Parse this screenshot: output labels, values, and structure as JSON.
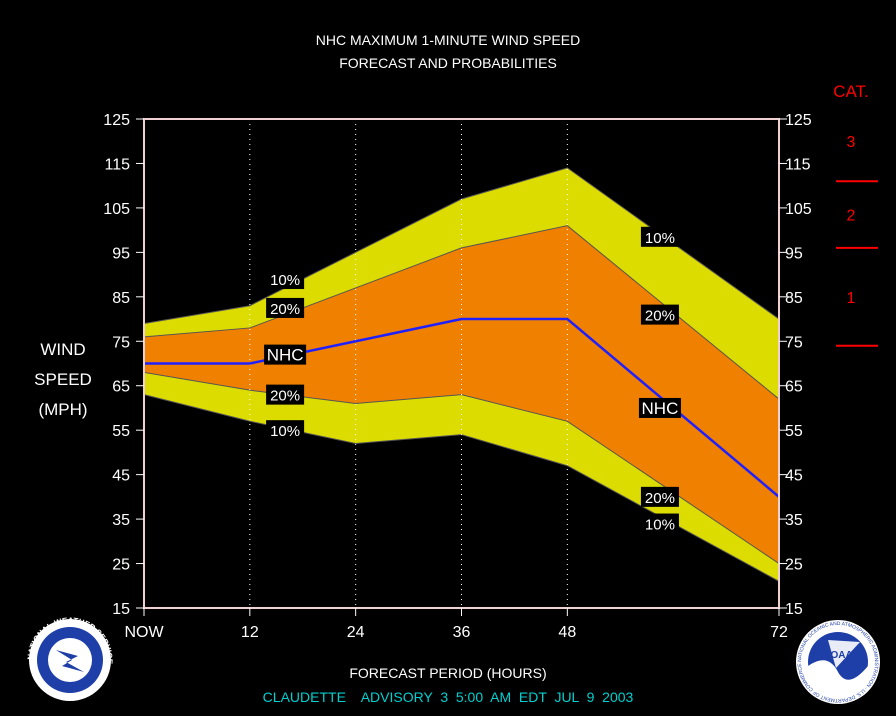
{
  "chart_data": {
    "type": "area",
    "title": "NHC MAXIMUM 1-MINUTE WIND SPEED",
    "subtitle": "FORECAST AND PROBABILITIES",
    "ylabel": [
      "WIND",
      "SPEED",
      "(MPH)"
    ],
    "xlabel": "FORECAST PERIOD (HOURS)",
    "footer": "CLAUDETTE    ADVISORY  3  5:00  AM  EDT  JUL  9  2003",
    "xlim": [
      0,
      72
    ],
    "ylim": [
      15,
      125
    ],
    "x_ticks": [
      0,
      12,
      24,
      36,
      48,
      72
    ],
    "x_tick_labels": [
      "NOW",
      "12",
      "24",
      "36",
      "48",
      "72"
    ],
    "y_ticks": [
      15,
      25,
      35,
      45,
      55,
      65,
      75,
      85,
      95,
      105,
      115,
      125
    ],
    "y_tick_labels": [
      "15",
      "25",
      "35",
      "45",
      "55",
      "65",
      "75",
      "85",
      "95",
      "105",
      "115",
      "125"
    ],
    "vertical_gridlines": [
      12,
      24,
      36,
      48
    ],
    "colors": {
      "outer_band": "#dcdc00",
      "inner_band": "#f08000",
      "nhc_line": "#2020ff",
      "category": "#ff0000",
      "footer": "#00d0d0"
    },
    "bands": {
      "upper_10": {
        "x": [
          0,
          12,
          24,
          36,
          48,
          72
        ],
        "y": [
          79,
          83,
          95,
          107,
          114,
          80
        ]
      },
      "upper_20": {
        "x": [
          0,
          12,
          24,
          36,
          48,
          72
        ],
        "y": [
          76,
          78,
          87,
          96,
          101,
          62
        ]
      },
      "lower_20": {
        "x": [
          0,
          12,
          24,
          36,
          48,
          72
        ],
        "y": [
          68,
          64,
          61,
          63,
          57,
          25
        ]
      },
      "lower_10": {
        "x": [
          0,
          12,
          24,
          36,
          48,
          72
        ],
        "y": [
          63,
          57,
          52,
          54,
          47,
          21
        ]
      }
    },
    "series": [
      {
        "name": "NHC",
        "x": [
          0,
          12,
          24,
          36,
          48,
          72
        ],
        "y": [
          70,
          70,
          75,
          80,
          80,
          40
        ]
      }
    ],
    "annotations": [
      {
        "text": "10%",
        "x": 16,
        "y": 89
      },
      {
        "text": "20%",
        "x": 16,
        "y": 82.5
      },
      {
        "text": "NHC",
        "x": 16,
        "y": 72
      },
      {
        "text": "20%",
        "x": 16,
        "y": 63
      },
      {
        "text": "10%",
        "x": 16,
        "y": 55
      },
      {
        "text": "10%",
        "x": 58.5,
        "y": 98.5
      },
      {
        "text": "20%",
        "x": 58.5,
        "y": 81
      },
      {
        "text": "NHC",
        "x": 58.5,
        "y": 60
      },
      {
        "text": "20%",
        "x": 58.5,
        "y": 40
      },
      {
        "text": "10%",
        "x": 58.5,
        "y": 34
      }
    ],
    "category_scale": {
      "heading": "CAT.",
      "boundaries": [
        74,
        96,
        111
      ],
      "labels": [
        {
          "text": "1",
          "y": 85
        },
        {
          "text": "2",
          "y": 103.5
        },
        {
          "text": "3",
          "y": 120
        }
      ]
    }
  },
  "logos": {
    "nws": "NATIONAL WEATHER SERVICE",
    "noaa": "NOAA",
    "noaa_ring": "NATIONAL OCEANIC AND ATMOSPHERIC ADMINISTRATION - U.S. DEPARTMENT OF COMMERCE"
  }
}
